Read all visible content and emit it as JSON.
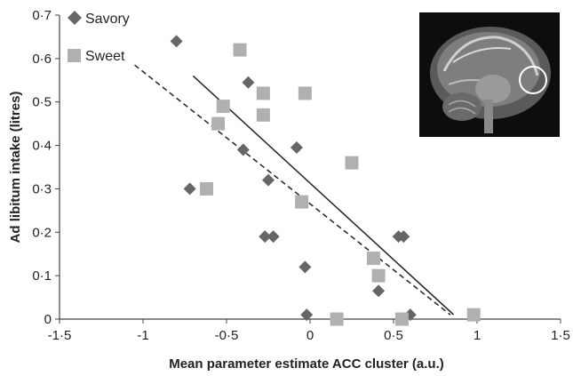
{
  "chart_data": {
    "type": "scatter",
    "xlabel": "Mean parameter estimate ACC cluster (a.u.)",
    "ylabel": "Ad libitum intake (litres)",
    "xlim": [
      -1.5,
      1.5
    ],
    "ylim": [
      0,
      0.7
    ],
    "x_ticks": [
      "-1·5",
      "-1",
      "-0·5",
      "0",
      "0·5",
      "1",
      "1·5"
    ],
    "y_ticks": [
      "0",
      "0·1",
      "0·2",
      "0·3",
      "0·4",
      "0·5",
      "0·6",
      "0·7"
    ],
    "x_tick_values": [
      -1.5,
      -1,
      -0.5,
      0,
      0.5,
      1,
      1.5
    ],
    "y_tick_values": [
      0,
      0.1,
      0.2,
      0.3,
      0.4,
      0.5,
      0.6,
      0.7
    ],
    "grid": false,
    "legend_position": "top-left",
    "inset": "brain sagittal MRI with circled region",
    "series": [
      {
        "name": "Savory",
        "marker": "diamond",
        "color": "#666666",
        "fit_line": "solid",
        "points": [
          [
            -0.8,
            0.64
          ],
          [
            -0.37,
            0.545
          ],
          [
            -0.72,
            0.3
          ],
          [
            -0.4,
            0.39
          ],
          [
            -0.25,
            0.32
          ],
          [
            -0.27,
            0.19
          ],
          [
            -0.22,
            0.19
          ],
          [
            -0.08,
            0.395
          ],
          [
            -0.03,
            0.12
          ],
          [
            -0.02,
            0.01
          ],
          [
            0.41,
            0.065
          ],
          [
            0.53,
            0.19
          ],
          [
            0.56,
            0.19
          ],
          [
            0.6,
            0.01
          ]
        ],
        "fit": [
          [
            -0.7,
            0.56
          ],
          [
            0.86,
            0.01
          ]
        ]
      },
      {
        "name": "Sweet",
        "marker": "square",
        "color": "#b0b0b0",
        "fit_line": "dashed",
        "points": [
          [
            -0.42,
            0.62
          ],
          [
            -0.52,
            0.49
          ],
          [
            -0.55,
            0.45
          ],
          [
            -0.62,
            0.3
          ],
          [
            -0.28,
            0.52
          ],
          [
            -0.28,
            0.47
          ],
          [
            -0.03,
            0.52
          ],
          [
            -0.05,
            0.27
          ],
          [
            0.25,
            0.36
          ],
          [
            0.38,
            0.14
          ],
          [
            0.41,
            0.1
          ],
          [
            0.16,
            0.0
          ],
          [
            0.55,
            0.0
          ],
          [
            0.98,
            0.01
          ]
        ],
        "fit": [
          [
            -1.05,
            0.585
          ],
          [
            0.84,
            0.01
          ]
        ]
      }
    ]
  }
}
